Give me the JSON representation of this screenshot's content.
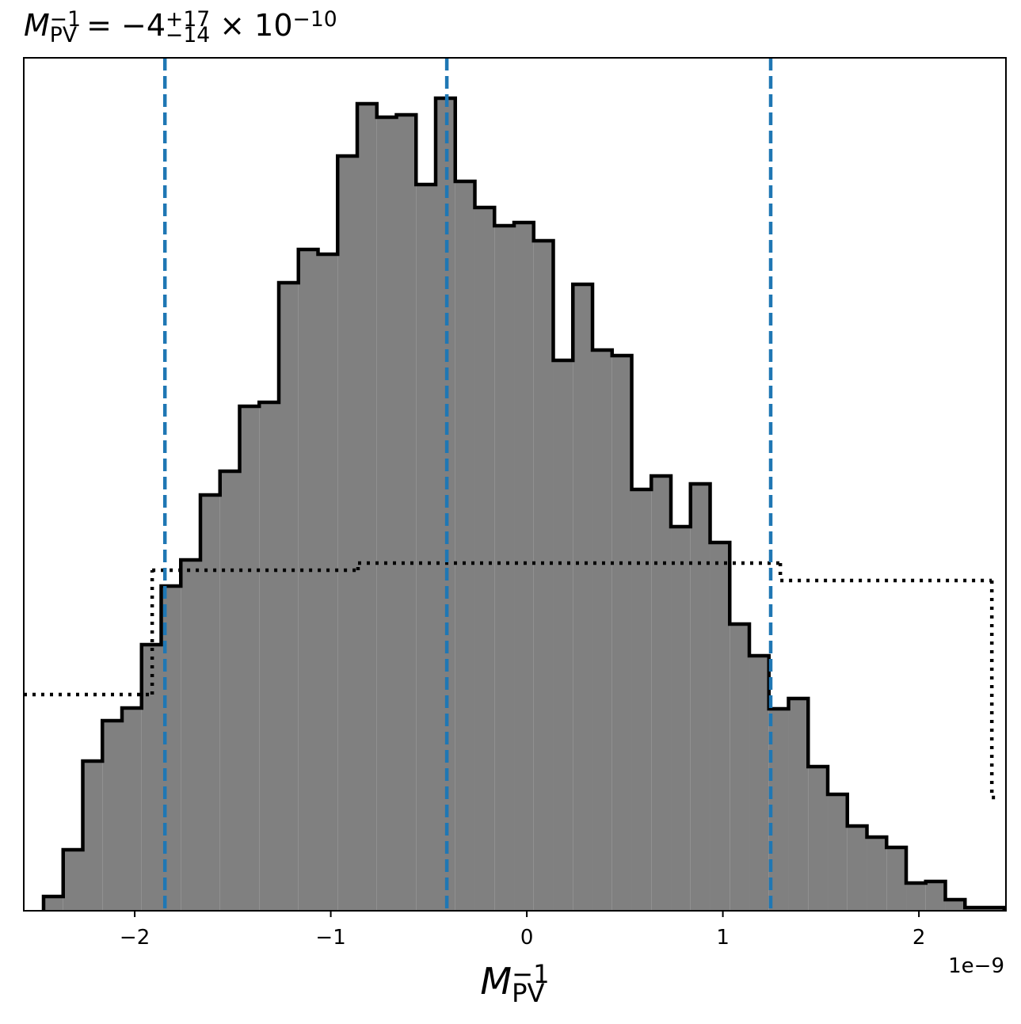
{
  "chart_data": {
    "type": "histogram",
    "title": {
      "symbol": "M",
      "sup": "−1",
      "sub": "PV",
      "equals": " = −4",
      "upper": "+17",
      "lower": "−14",
      "times": " × 10",
      "exponent": "−10"
    },
    "xlabel": {
      "symbol": "M",
      "sup": "−1",
      "sub": "PV"
    },
    "offset_label": "1e−9",
    "bins": [
      -2.465,
      -2.365,
      -2.265,
      -2.165,
      -2.065,
      -1.965,
      -1.865,
      -1.765,
      -1.665,
      -1.565,
      -1.465,
      -1.365,
      -1.265,
      -1.165,
      -1.065,
      -0.965,
      -0.865,
      -0.765,
      -0.665,
      -0.565,
      -0.465,
      -0.365,
      -0.265,
      -0.165,
      -0.065,
      0.035,
      0.135,
      0.235,
      0.335,
      0.435,
      0.535,
      0.635,
      0.735,
      0.835,
      0.935,
      1.035,
      1.135,
      1.235,
      1.335,
      1.435,
      1.535,
      1.635,
      1.735,
      1.835,
      1.935,
      2.035,
      2.135,
      2.235,
      2.335,
      2.435
    ],
    "counts": [
      18,
      77,
      189,
      240,
      256,
      336,
      410,
      443,
      525,
      555,
      637,
      642,
      793,
      835,
      829,
      953,
      1019,
      1002,
      1005,
      917,
      1026,
      921,
      888,
      865,
      869,
      846,
      695,
      791,
      708,
      701,
      532,
      549,
      485,
      539,
      465,
      362,
      322,
      255,
      268,
      182,
      147,
      107,
      93,
      80,
      35,
      37,
      14,
      4,
      4
    ],
    "color": "#808080",
    "edgecolor": "#000000",
    "step": {
      "bins": [
        -2.566,
        -1.911,
        -0.861,
        1.293,
        2.372,
        2.412
      ],
      "counts": [
        273,
        430,
        439,
        417,
        143
      ],
      "color": "#000000"
    },
    "vlines": [
      -1.846,
      -0.408,
      1.244
    ],
    "vline_color": "#1f77b4",
    "xlim": [
      -2.566,
      2.444
    ],
    "ylim": [
      0,
      1077
    ],
    "xticks": [
      {
        "value": -2,
        "label": "−2"
      },
      {
        "value": -1,
        "label": "−1"
      },
      0,
      1,
      2
    ]
  }
}
